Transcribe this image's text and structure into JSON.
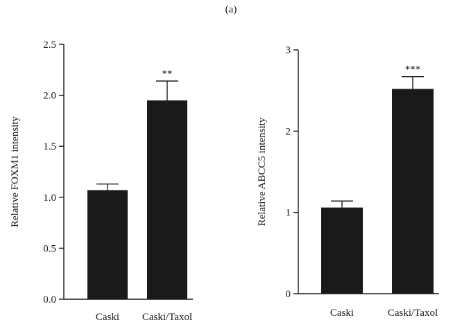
{
  "figure": {
    "panel_label": "(a)"
  },
  "chart_data": [
    {
      "type": "bar",
      "title": "",
      "xlabel": "",
      "ylabel": "Relative FOXM1 intensity",
      "categories": [
        "Caski",
        "Caski/Taxol"
      ],
      "values": [
        1.07,
        1.95
      ],
      "error": [
        0.06,
        0.19
      ],
      "annotations": [
        "",
        "**"
      ],
      "ylim": [
        0,
        2.5
      ],
      "yticks": [
        0.0,
        0.5,
        1.0,
        1.5,
        2.0,
        2.5
      ],
      "ytick_labels": [
        "0.0",
        "0.5",
        "1.0",
        "1.5",
        "2.0",
        "2.5"
      ],
      "bar_color": "#1a1a1a",
      "grid": false,
      "legend": "none"
    },
    {
      "type": "bar",
      "title": "",
      "xlabel": "",
      "ylabel": "Relative ABCC5 intensity",
      "categories": [
        "Caski",
        "Caski/Taxol"
      ],
      "values": [
        1.06,
        2.52
      ],
      "error": [
        0.08,
        0.15
      ],
      "annotations": [
        "",
        "***"
      ],
      "ylim": [
        0,
        3
      ],
      "yticks": [
        0,
        1,
        2,
        3
      ],
      "ytick_labels": [
        "0",
        "1",
        "2",
        "3"
      ],
      "bar_color": "#1a1a1a",
      "grid": false,
      "legend": "none"
    }
  ]
}
